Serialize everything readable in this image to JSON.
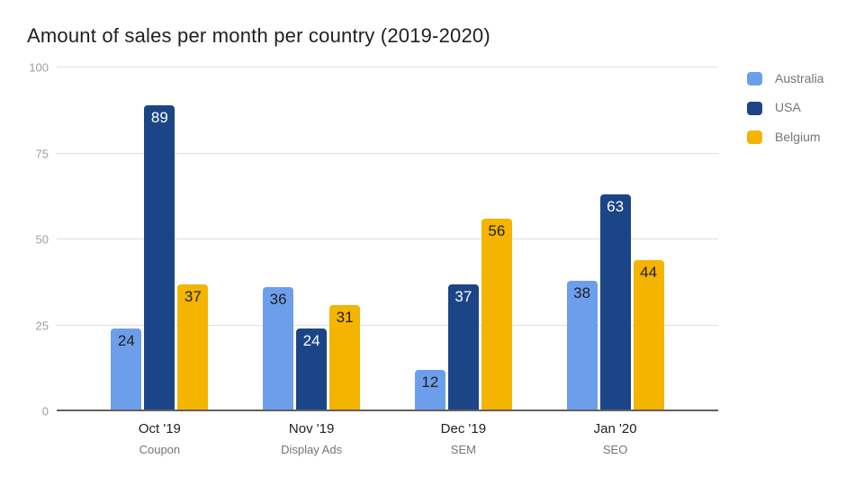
{
  "chart_data": {
    "type": "bar",
    "title": "Amount of sales per month per country (2019-2020)",
    "xlabel": "",
    "ylabel": "",
    "ylim": [
      0,
      100
    ],
    "yticks": [
      0,
      25,
      50,
      75,
      100
    ],
    "grid": true,
    "legend_position": "right",
    "categories": [
      {
        "month": "Oct '19",
        "channel": "Coupon"
      },
      {
        "month": "Nov '19",
        "channel": "Display Ads"
      },
      {
        "month": "Dec '19",
        "channel": "SEM"
      },
      {
        "month": "Jan '20",
        "channel": "SEO"
      }
    ],
    "series": [
      {
        "name": "Australia",
        "color": "#6D9EEB",
        "label_color": "#212121",
        "values": [
          24,
          36,
          12,
          38
        ]
      },
      {
        "name": "USA",
        "color": "#1C4587",
        "label_color": "#FFFFFF",
        "values": [
          89,
          24,
          37,
          63
        ]
      },
      {
        "name": "Belgium",
        "color": "#F4B400",
        "label_color": "#212121",
        "values": [
          37,
          31,
          56,
          44
        ]
      }
    ],
    "colors": {
      "background": "#FFFFFF",
      "gridline": "#E0E0E0",
      "axis_line": "#616161",
      "tick_text": "#9E9E9E",
      "subtext": "#757575",
      "text": "#212121"
    }
  }
}
